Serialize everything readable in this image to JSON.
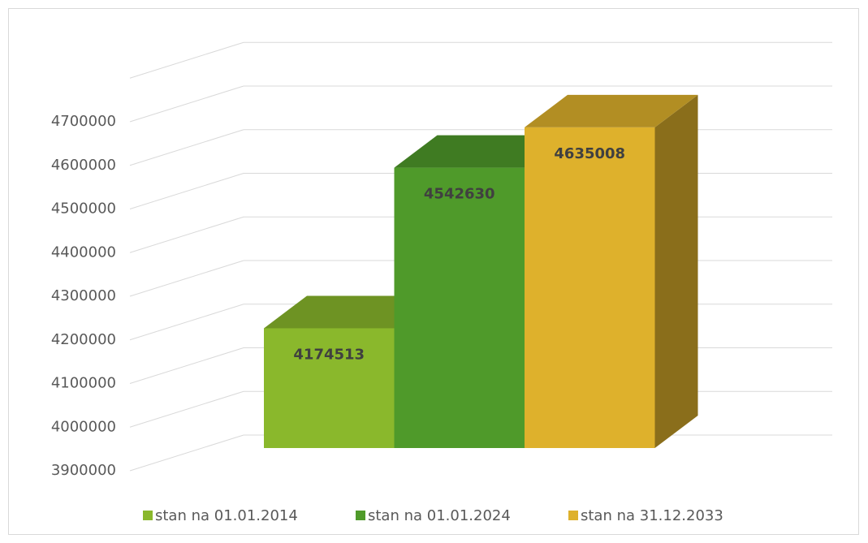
{
  "chart_data": {
    "type": "bar3d",
    "categories": [
      null
    ],
    "series": [
      {
        "name": "stan na 01.01.2014",
        "color": "#8ab82c",
        "values": [
          4174513
        ]
      },
      {
        "name": "stan na 01.01.2024",
        "color": "#4f9a2a",
        "values": [
          4542630
        ]
      },
      {
        "name": "stan na 31.12.2033",
        "color": "#deb12c",
        "values": [
          4635008
        ]
      }
    ],
    "ylim": [
      3900000,
      4800000
    ],
    "yticks": [
      3900000,
      4000000,
      4100000,
      4200000,
      4300000,
      4400000,
      4500000,
      4600000,
      4700000
    ],
    "grid": true,
    "legend": "bottom"
  }
}
